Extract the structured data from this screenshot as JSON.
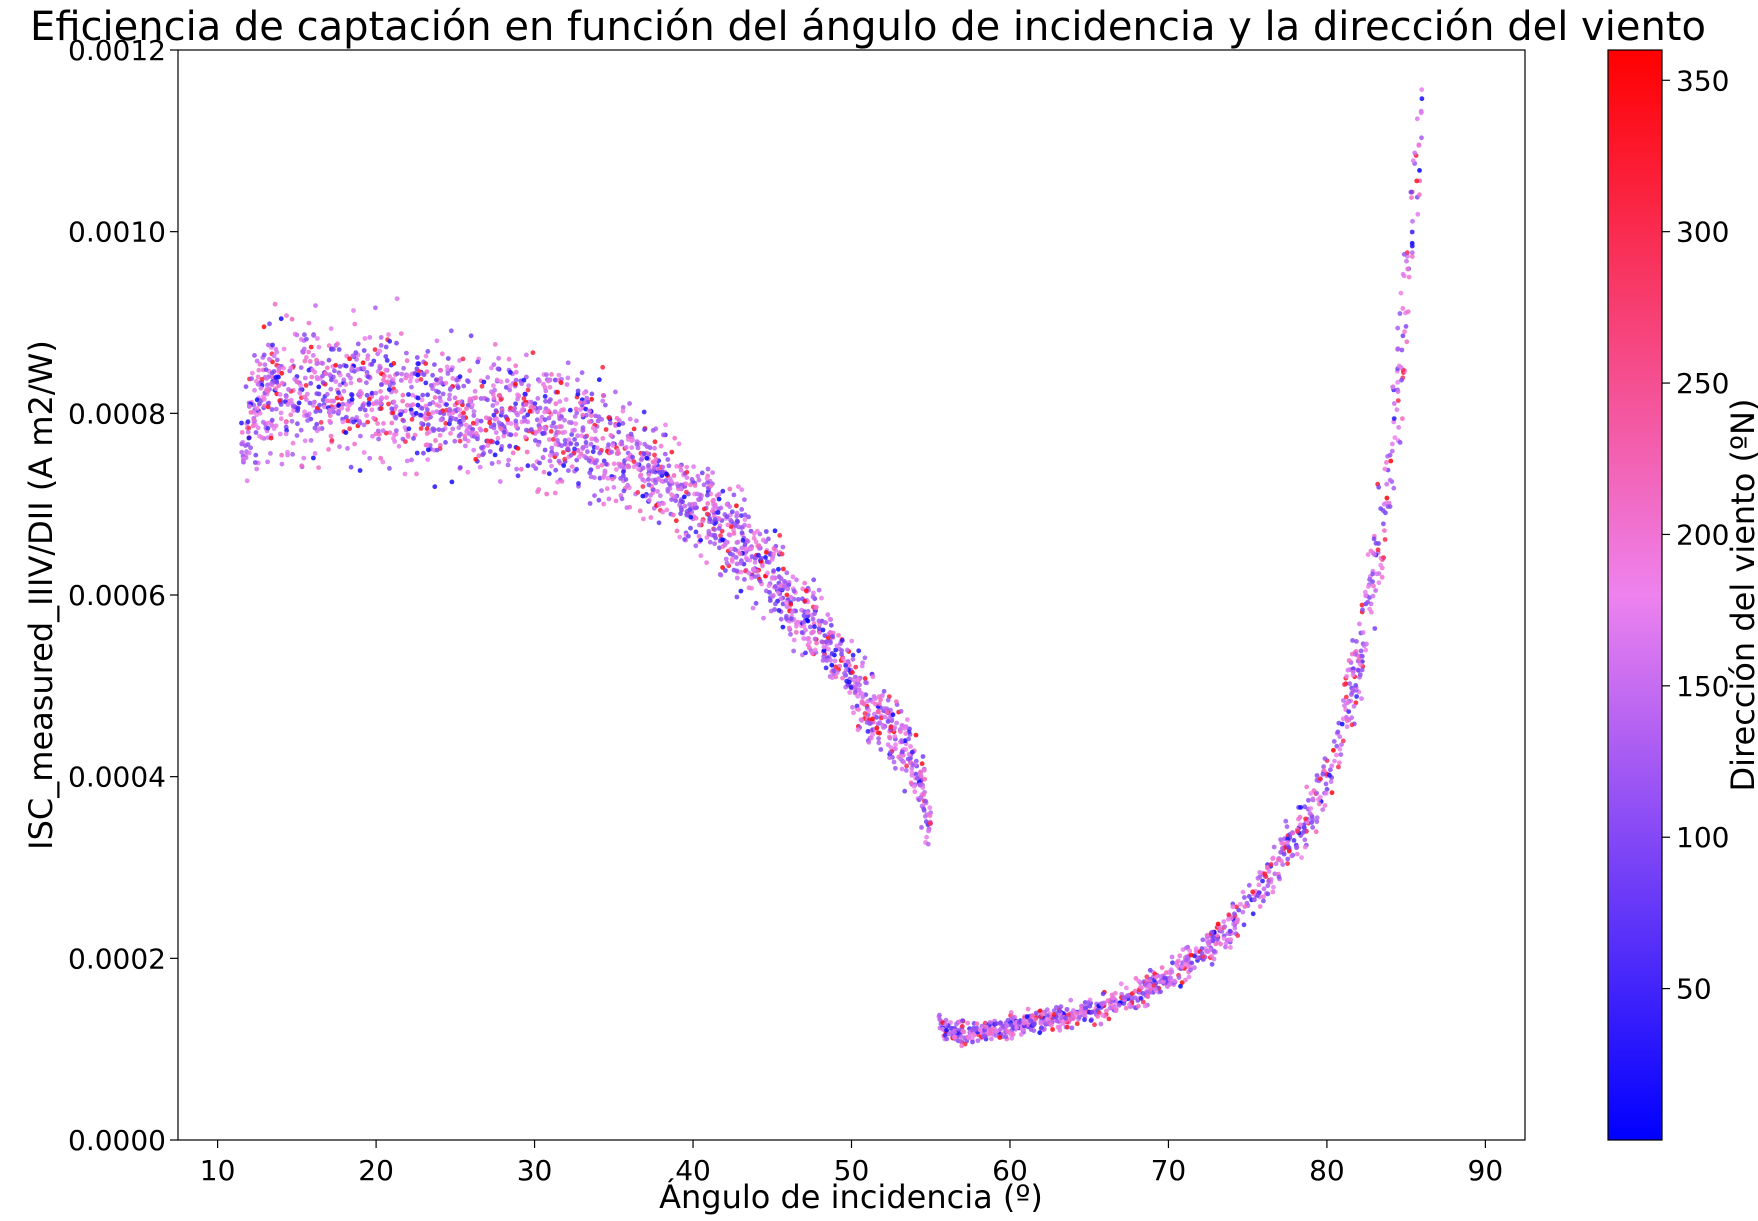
{
  "chart_data": {
    "type": "scatter",
    "title": "Eficiencia de captación en función del ángulo de incidencia y la dirección del viento",
    "xlabel": "Ángulo de incidencia (º)",
    "ylabel": "ISC_measured_IIIV/DII (A m2/W)",
    "xlim": [
      7.5,
      92.5
    ],
    "ylim": [
      0,
      0.0012
    ],
    "x_ticks": [
      10,
      20,
      30,
      40,
      50,
      60,
      70,
      80,
      90
    ],
    "x_tick_labels": [
      "10",
      "20",
      "30",
      "40",
      "50",
      "60",
      "70",
      "80",
      "90"
    ],
    "y_ticks": [
      0,
      0.0002,
      0.0004,
      0.0006,
      0.0008,
      0.001,
      0.0012
    ],
    "y_tick_labels": [
      "0.0000",
      "0.0002",
      "0.0004",
      "0.0006",
      "0.0008",
      "0.0010",
      "0.0012"
    ],
    "grid": false,
    "colorbar": {
      "label": "Dirección del viento (ºN)",
      "range": [
        0,
        360
      ],
      "ticks": [
        50,
        100,
        150,
        200,
        250,
        300,
        350
      ],
      "tick_labels": [
        "50",
        "100",
        "150",
        "200",
        "250",
        "300",
        "350"
      ],
      "colormap": [
        "#0000ff",
        "#ee82ee",
        "#ff0000"
      ]
    },
    "series": [
      {
        "x": [
          11.5,
          12,
          12.5,
          13,
          14,
          15,
          16,
          17,
          18,
          19,
          20,
          21,
          22,
          23,
          24,
          25,
          26,
          27,
          28,
          29,
          30,
          31,
          32,
          33,
          34,
          35,
          36,
          37,
          38,
          39,
          40,
          41,
          42,
          43,
          44,
          45,
          46,
          47,
          48,
          49,
          50,
          51,
          52,
          53,
          54,
          55
        ],
        "y": [
          0.00077,
          0.00079,
          0.00081,
          0.00082,
          0.00082,
          0.00082,
          0.00082,
          0.00082,
          0.00082,
          0.00082,
          0.00082,
          0.00082,
          0.00081,
          0.00081,
          0.00081,
          0.00081,
          0.0008,
          0.0008,
          0.0008,
          0.0008,
          0.0008,
          0.00079,
          0.00078,
          0.00078,
          0.00077,
          0.00076,
          0.00075,
          0.00074,
          0.00073,
          0.00072,
          0.0007,
          0.00069,
          0.00067,
          0.00066,
          0.00064,
          0.00062,
          0.0006,
          0.00058,
          0.00056,
          0.00053,
          0.00051,
          0.00048,
          0.00046,
          0.00044,
          0.00041,
          0.00035
        ],
        "spread": [
          3e-05,
          5e-05,
          6e-05,
          6e-05,
          6e-05,
          6e-05,
          6e-05,
          6e-05,
          6e-05,
          6e-05,
          6e-05,
          6e-05,
          6e-05,
          5e-05,
          5e-05,
          5e-05,
          5e-05,
          5e-05,
          5e-05,
          5e-05,
          5e-05,
          5e-05,
          5e-05,
          5e-05,
          5e-05,
          4e-05,
          4e-05,
          4e-05,
          4e-05,
          4e-05,
          4e-05,
          4e-05,
          4e-05,
          4e-05,
          3.5e-05,
          3.5e-05,
          3.5e-05,
          3e-05,
          3e-05,
          3e-05,
          3e-05,
          3e-05,
          3e-05,
          3e-05,
          3e-05,
          3e-05
        ]
      },
      {
        "x": [
          55.5,
          56,
          57,
          58,
          59,
          60,
          61,
          62,
          63,
          64,
          65,
          66,
          67,
          68,
          69,
          70,
          71,
          72,
          73,
          74,
          75,
          76,
          77,
          78,
          79,
          80,
          81,
          82,
          83,
          84,
          85,
          86
        ],
        "y": [
          0.000125,
          0.00012,
          0.000118,
          0.00012,
          0.000122,
          0.000125,
          0.000127,
          0.00013,
          0.000133,
          0.000137,
          0.000142,
          0.000148,
          0.000154,
          0.000161,
          0.00017,
          0.00018,
          0.000192,
          0.000205,
          0.00022,
          0.000238,
          0.00026,
          0.000285,
          0.00031,
          0.000335,
          0.00036,
          0.00039,
          0.00046,
          0.00053,
          0.00062,
          0.00075,
          0.00092,
          0.00115
        ],
        "spread": [
          1e-05,
          1e-05,
          1e-05,
          1e-05,
          1e-05,
          1e-05,
          1e-05,
          1e-05,
          1e-05,
          1e-05,
          1e-05,
          1e-05,
          1e-05,
          1.2e-05,
          1.2e-05,
          1.2e-05,
          1.4e-05,
          1.4e-05,
          1.6e-05,
          1.8e-05,
          2e-05,
          2e-05,
          2.2e-05,
          2.2e-05,
          2.5e-05,
          2.5e-05,
          3e-05,
          4e-05,
          5e-05,
          6e-05,
          7e-05,
          8e-05
        ]
      }
    ]
  }
}
